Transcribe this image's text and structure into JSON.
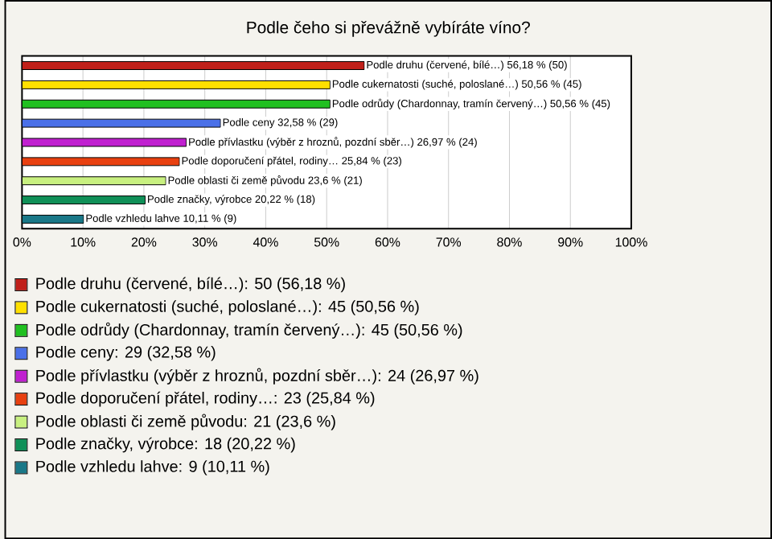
{
  "chart_data": {
    "type": "bar",
    "orientation": "horizontal",
    "title": "Podle čeho si převážně vybíráte víno?",
    "categories": [
      null,
      null,
      null,
      null,
      null,
      null,
      null,
      null,
      null
    ],
    "values": [
      56.18,
      50.56,
      50.56,
      32.58,
      26.97,
      25.84,
      23.6,
      20.22,
      10.11
    ],
    "value_labels": [
      "Podle druhu (červené, bílé…) 56,18 % (50)",
      "Podle cukernatosti (suché, poloslané…) 50,56 % (45)",
      "Podle odrůdy (Chardonnay, tramín červený…) 50,56 % (45)",
      "Podle ceny 32,58 % (29)",
      "Podle přívlastku (výběr z hroznů, pozdní sběr…) 26,97 % (24)",
      "Podle doporučení přátel, rodiny… 25,84 % (23)",
      "Podle oblasti či země původu 23,6 % (21)",
      "Podle značky, výrobce 20,22 % (18)",
      "Podle vzhledu lahve 10,11 % (9)"
    ],
    "colors": [
      "#c0201a",
      "#ffe000",
      "#20c020",
      "#4a70e8",
      "#c020d0",
      "#e84010",
      "#c8f080",
      "#109058",
      "#1a7888"
    ],
    "xlim": [
      0,
      100
    ],
    "xticks": [
      {
        "value": 0,
        "label": "0%"
      },
      {
        "value": 10,
        "label": "10%"
      },
      {
        "value": 20,
        "label": "20%"
      },
      {
        "value": 30,
        "label": "30%"
      },
      {
        "value": 40,
        "label": "40%"
      },
      {
        "value": 50,
        "label": "50%"
      },
      {
        "value": 60,
        "label": "60%"
      },
      {
        "value": 70,
        "label": "70%"
      },
      {
        "value": 80,
        "label": "80%"
      },
      {
        "value": 90,
        "label": "90%"
      },
      {
        "value": 100,
        "label": "100%"
      }
    ],
    "grid": "x",
    "annotations": [
      "Podle druhu (červené, bílé…): 50 (56,18 %)",
      "Podle cukernatosti (suché, poloslané…): 45 (50,56 %)",
      "Podle odrůdy (Chardonnay, tramín červený…): 45 (50,56 %)",
      "Podle ceny: 29 (32,58 %)",
      "Podle přívlastku (výběr z hroznů, pozdní sběr…): 24 (26,97 %)",
      "Podle doporučení přátel, rodiny…: 23 (25,84 %)",
      "Podle oblasti či země původu: 21 (23,6 %)",
      "Podle značky, výrobce: 18 (20,22 %)",
      "Podle vzhledu lahve: 9 (10,11 %)"
    ]
  }
}
